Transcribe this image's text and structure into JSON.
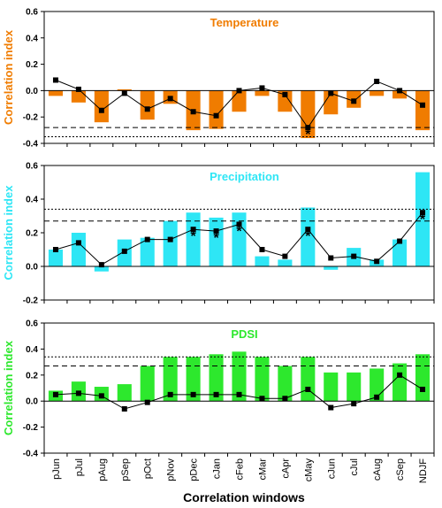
{
  "chart_data": {
    "type": "bar",
    "xlabel": "Correlation windows",
    "categories": [
      "pJun",
      "pJul",
      "pAug",
      "pSep",
      "pOct",
      "pNov",
      "pDec",
      "cJan",
      "cFeb",
      "cMar",
      "cApr",
      "cMay",
      "cJun",
      "cJul",
      "cAug",
      "cSep",
      "NDJF"
    ],
    "panels": [
      {
        "title": "Temperature",
        "ylabel": "Correlation index",
        "color": "#F07C00",
        "ylim": [
          -0.4,
          0.6
        ],
        "yticks": [
          "0.6",
          "0.4",
          "0.2",
          "0.0",
          "-0.2",
          "-0.4"
        ],
        "grid": false,
        "bars": [
          -0.04,
          -0.09,
          -0.24,
          0.01,
          -0.22,
          -0.1,
          -0.3,
          -0.29,
          -0.16,
          -0.04,
          -0.16,
          -0.36,
          -0.18,
          -0.13,
          -0.04,
          -0.06,
          -0.3
        ],
        "line": [
          0.08,
          0.01,
          -0.15,
          -0.02,
          -0.14,
          -0.06,
          -0.16,
          -0.19,
          0.0,
          0.02,
          -0.03,
          -0.28,
          -0.02,
          -0.08,
          0.07,
          0.0,
          -0.11
        ],
        "threshold_dashed": -0.28,
        "threshold_dotted": -0.35,
        "significant_markers": [
          11
        ]
      },
      {
        "title": "Precipitation",
        "ylabel": "Correlation index",
        "color": "#2EE6F5",
        "ylim": [
          -0.2,
          0.6
        ],
        "yticks": [
          "0.6",
          "0.4",
          "0.2",
          "0.0",
          "-0.2"
        ],
        "grid": false,
        "bars": [
          0.1,
          0.2,
          -0.03,
          0.16,
          0.17,
          0.27,
          0.32,
          0.29,
          0.32,
          0.06,
          0.04,
          0.35,
          -0.02,
          0.11,
          0.04,
          0.16,
          0.56
        ],
        "line": [
          0.1,
          0.14,
          0.01,
          0.09,
          0.16,
          0.16,
          0.22,
          0.21,
          0.25,
          0.1,
          0.06,
          0.22,
          0.05,
          0.06,
          0.03,
          0.15,
          0.32
        ],
        "threshold_dashed": 0.27,
        "threshold_dotted": 0.34,
        "significant_markers": [
          6,
          7,
          8,
          11,
          16
        ]
      },
      {
        "title": "PDSI",
        "ylabel": "Correlation index",
        "color": "#2DE82D",
        "ylim": [
          -0.4,
          0.6
        ],
        "yticks": [
          "0.6",
          "0.4",
          "0.2",
          "0.0",
          "-0.2",
          "-0.4"
        ],
        "grid": false,
        "bars": [
          0.08,
          0.15,
          0.11,
          0.13,
          0.27,
          0.34,
          0.34,
          0.36,
          0.38,
          0.34,
          0.27,
          0.34,
          0.22,
          0.22,
          0.25,
          0.29,
          0.36
        ],
        "line": [
          0.05,
          0.06,
          0.04,
          -0.06,
          -0.01,
          0.05,
          0.05,
          0.05,
          0.05,
          0.02,
          0.02,
          0.09,
          -0.05,
          -0.02,
          0.03,
          0.2,
          0.09
        ],
        "threshold_dashed": 0.27,
        "threshold_dotted": 0.34,
        "significant_markers": []
      }
    ]
  }
}
